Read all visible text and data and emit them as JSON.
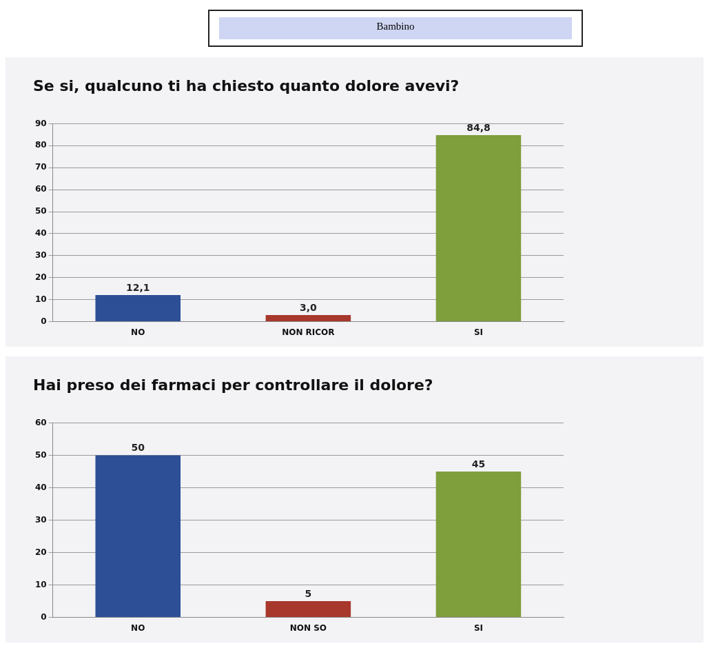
{
  "chart_data": [
    {
      "type": "other",
      "title": "Bambino"
    },
    {
      "type": "bar",
      "title": "Se si, qualcuno ti ha chiesto quanto dolore avevi?",
      "categories": [
        "NO",
        "NON RICOR",
        "SI"
      ],
      "values": [
        12.1,
        3.0,
        84.8
      ],
      "colors": [
        "#2c4f96",
        "#a8382c",
        "#7f9e3c"
      ],
      "value_labels": [
        "12,1",
        "3,0",
        "84,8"
      ],
      "ylim": [
        0,
        90
      ],
      "yticks": [
        0,
        10,
        20,
        30,
        40,
        50,
        60,
        70,
        80,
        90
      ],
      "grid": "y",
      "legend": false
    },
    {
      "type": "bar",
      "title": "Hai preso dei farmaci per controllare il dolore?",
      "categories": [
        "NO",
        "NON SO",
        "SI"
      ],
      "values": [
        50,
        5,
        45
      ],
      "colors": [
        "#2c4f96",
        "#a8382c",
        "#7f9e3c"
      ],
      "data_labels": true,
      "ylim": [
        0,
        60
      ],
      "yticks": [
        0,
        10,
        20,
        30,
        40,
        50,
        60
      ],
      "grid": "y",
      "legend": false
    }
  ]
}
